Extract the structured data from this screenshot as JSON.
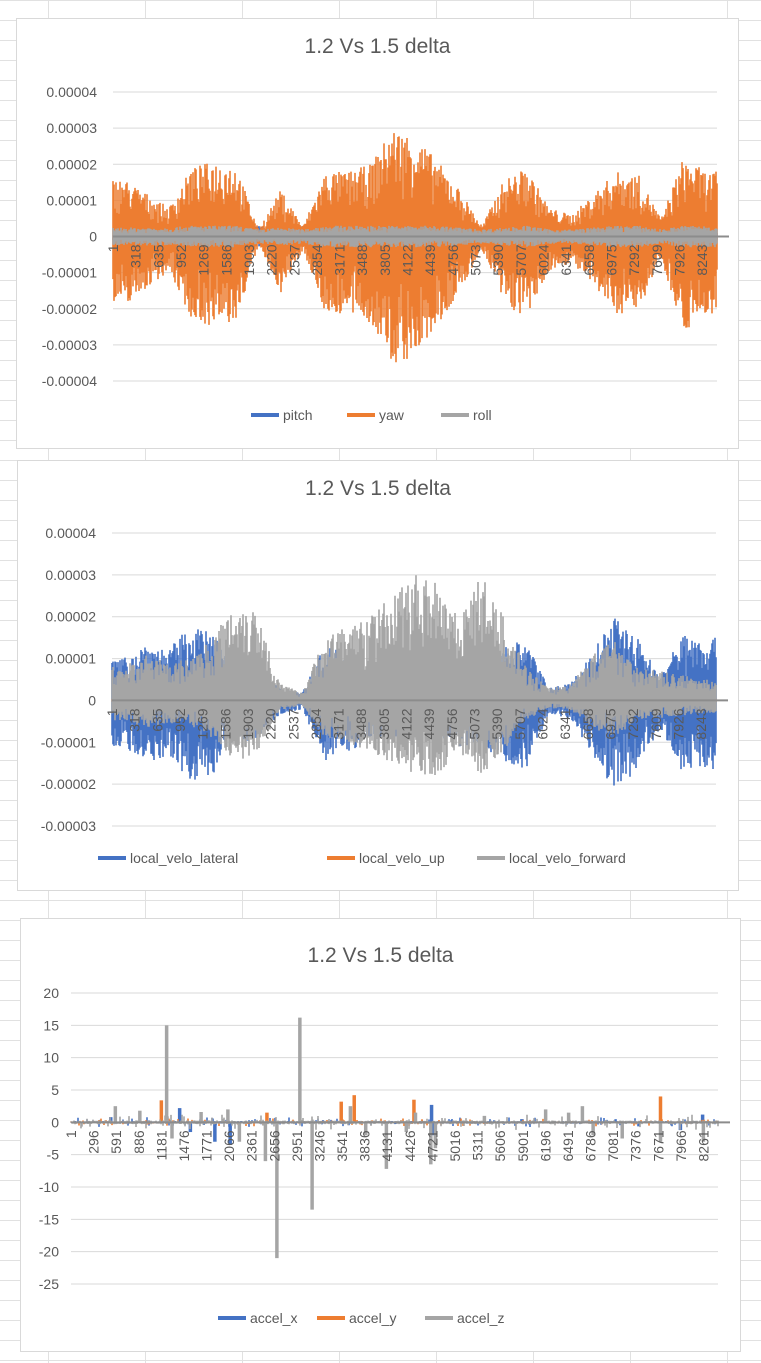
{
  "colors": {
    "blue": "#4472C4",
    "orange": "#ED7D31",
    "gray": "#A5A5A5"
  },
  "chart_data": [
    {
      "type": "line",
      "title": "1.2 Vs 1.5 delta",
      "ylim": [
        -4e-05,
        4e-05
      ],
      "ystep": 1e-05,
      "yticks": [
        "0.00004",
        "0.00003",
        "0.00002",
        "0.00001",
        "0",
        "-0.00001",
        "-0.00002",
        "-0.00003",
        "-0.00004"
      ],
      "xticks": [
        "1",
        "318",
        "635",
        "952",
        "1269",
        "1586",
        "1903",
        "2220",
        "2537",
        "2854",
        "3171",
        "3488",
        "3805",
        "4122",
        "4439",
        "4756",
        "5073",
        "5390",
        "5707",
        "6024",
        "6341",
        "6658",
        "6975",
        "7292",
        "7609",
        "7926",
        "8243"
      ],
      "n_points": 8450,
      "legend_position": "bottom",
      "series": [
        {
          "name": "pitch",
          "color": "blue",
          "neg_ratio": 1,
          "amplitude_e5": [
            0.1,
            0.1,
            0.1,
            0.1,
            0.1,
            0.1,
            0.3,
            0.2,
            0.3,
            0.1,
            0.1,
            0.1,
            0.1,
            0.1,
            0.1,
            0.1,
            0.1,
            0.1,
            0.1,
            0.1,
            0.1,
            0.1,
            0.1,
            0.1,
            0.1,
            0.1,
            0.1
          ]
        },
        {
          "name": "yaw",
          "color": "orange",
          "neg_ratio": 1.2,
          "amplitude_e5": [
            1.6,
            1.2,
            0.8,
            1.9,
            2.1,
            2.0,
            0.2,
            1.3,
            0.3,
            1.8,
            1.8,
            2.0,
            3.0,
            2.8,
            2.1,
            1.3,
            0.3,
            1.6,
            1.9,
            0.8,
            0.6,
            1.2,
            1.8,
            1.7,
            0.5,
            2.2,
            1.8
          ]
        },
        {
          "name": "roll",
          "color": "gray",
          "neg_ratio": 1,
          "amplitude_e5": [
            0.25,
            0.25,
            0.25,
            0.3,
            0.3,
            0.3,
            0.2,
            0.25,
            0.2,
            0.3,
            0.3,
            0.3,
            0.3,
            0.3,
            0.3,
            0.25,
            0.2,
            0.25,
            0.3,
            0.2,
            0.2,
            0.25,
            0.3,
            0.3,
            0.2,
            0.3,
            0.3
          ]
        }
      ]
    },
    {
      "type": "line",
      "title": "1.2 Vs 1.5 delta",
      "ylim": [
        -3e-05,
        4e-05
      ],
      "ystep": 1e-05,
      "yticks": [
        "0.00004",
        "0.00003",
        "0.00002",
        "0.00001",
        "0",
        "-0.00001",
        "-0.00002",
        "-0.00003"
      ],
      "xticks": [
        "1",
        "318",
        "635",
        "952",
        "1269",
        "1586",
        "1903",
        "2220",
        "2537",
        "2854",
        "3171",
        "3488",
        "3805",
        "4122",
        "4439",
        "4756",
        "5073",
        "5390",
        "5707",
        "6024",
        "6341",
        "6658",
        "6975",
        "7292",
        "7609",
        "7926",
        "8243"
      ],
      "n_points": 8450,
      "legend_position": "bottom",
      "series": [
        {
          "name": "local_velo_lateral",
          "color": "blue",
          "neg_ratio": 1.1,
          "amplitude_e5": [
            1.0,
            1.4,
            1.2,
            1.8,
            1.6,
            1.0,
            0.8,
            0.3,
            0.2,
            1.3,
            1.2,
            0.8,
            0.8,
            0.8,
            0.8,
            1.0,
            1.0,
            1.3,
            1.5,
            0.3,
            0.4,
            1.2,
            2.0,
            1.5,
            0.6,
            1.6,
            1.5
          ]
        },
        {
          "name": "local_velo_up",
          "color": "orange",
          "neg_ratio": 1,
          "amplitude_e5": [
            0.05,
            0.05,
            0.05,
            0.05,
            0.05,
            0.05,
            0.05,
            0.05,
            0.05,
            0.05,
            0.05,
            0.05,
            0.05,
            0.05,
            0.05,
            0.05,
            0.05,
            0.05,
            0.05,
            0.05,
            0.05,
            0.05,
            0.05,
            0.05,
            0.05,
            0.05,
            0.05
          ]
        },
        {
          "name": "local_velo_forward",
          "color": "gray",
          "neg_ratio": 0.6,
          "amplitude_e5": [
            0.8,
            1.1,
            0.9,
            1.0,
            1.5,
            2.4,
            2.2,
            0.4,
            0.2,
            1.5,
            1.8,
            2.0,
            2.5,
            3.0,
            3.0,
            2.0,
            3.0,
            2.0,
            0.8,
            0.3,
            0.4,
            1.1,
            1.5,
            0.8,
            0.7,
            0.6,
            0.5
          ]
        }
      ]
    },
    {
      "type": "line",
      "title": "1.2 Vs 1.5 delta",
      "ylim": [
        -25,
        20
      ],
      "ystep": 5,
      "yticks": [
        "20",
        "15",
        "10",
        "5",
        "0",
        "-5",
        "-10",
        "-15",
        "-20",
        "-25"
      ],
      "xticks": [
        "1",
        "296",
        "591",
        "886",
        "1181",
        "1476",
        "1771",
        "2066",
        "2361",
        "2656",
        "2951",
        "3246",
        "3541",
        "3836",
        "4131",
        "4426",
        "4721",
        "5016",
        "5311",
        "5606",
        "5901",
        "6196",
        "6491",
        "6786",
        "7081",
        "7376",
        "7671",
        "7966",
        "8261"
      ],
      "n_points": 8450,
      "legend_position": "bottom",
      "series": [
        {
          "name": "accel_x",
          "color": "blue",
          "noise": 0.4,
          "spikes": [
            [
              520,
              0.8
            ],
            [
              1420,
              2.2
            ],
            [
              1560,
              -1.5
            ],
            [
              1880,
              -3
            ],
            [
              2080,
              -3.5
            ],
            [
              4710,
              2.7
            ],
            [
              4720,
              -2
            ],
            [
              5890,
              0.5
            ],
            [
              7960,
              -1.2
            ],
            [
              8250,
              1.2
            ]
          ]
        },
        {
          "name": "accel_y",
          "color": "orange",
          "noise": 0.3,
          "spikes": [
            [
              1181,
              3.4
            ],
            [
              2560,
              1.5
            ],
            [
              3530,
              3.2
            ],
            [
              3700,
              4.2
            ],
            [
              4480,
              3.5
            ],
            [
              7700,
              4
            ]
          ]
        },
        {
          "name": "accel_z",
          "color": "gray",
          "noise": 0.6,
          "spikes": [
            [
              580,
              2.5
            ],
            [
              900,
              1.8
            ],
            [
              1250,
              15
            ],
            [
              1320,
              -2.5
            ],
            [
              1700,
              1.6
            ],
            [
              2050,
              2
            ],
            [
              2200,
              -3
            ],
            [
              2540,
              -6
            ],
            [
              2690,
              -21
            ],
            [
              2990,
              16.2
            ],
            [
              3150,
              -13.5
            ],
            [
              3650,
              2.5
            ],
            [
              3850,
              -2
            ],
            [
              4120,
              -7.2
            ],
            [
              4380,
              -1.5
            ],
            [
              4500,
              1.5
            ],
            [
              4700,
              -6.5
            ],
            [
              4760,
              -4
            ],
            [
              5400,
              1
            ],
            [
              6200,
              2
            ],
            [
              6500,
              1.5
            ],
            [
              6680,
              2.5
            ],
            [
              6820,
              -2
            ],
            [
              7200,
              -2.5
            ],
            [
              7700,
              -3
            ],
            [
              8260,
              -3
            ]
          ]
        }
      ]
    }
  ]
}
